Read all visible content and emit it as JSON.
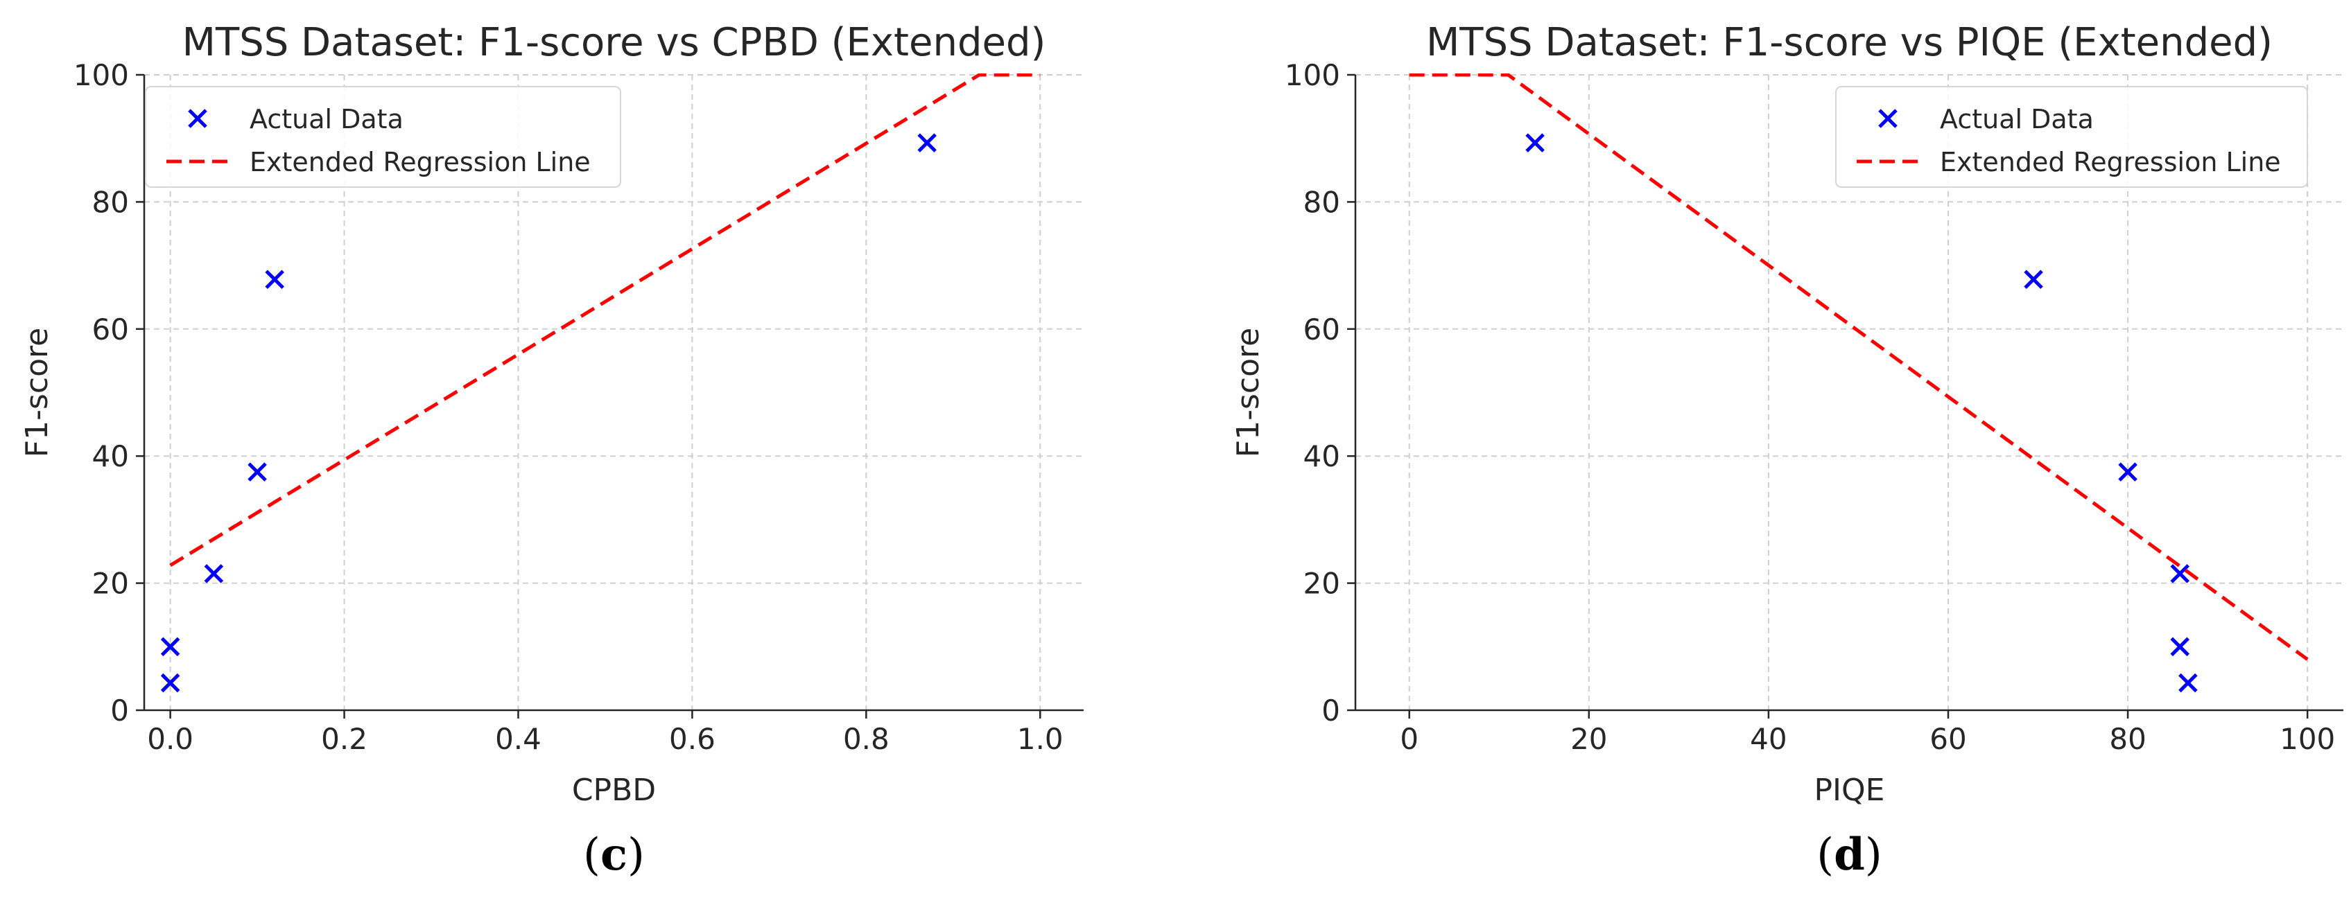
{
  "chart_data": [
    {
      "type": "scatter",
      "title": "MTSS Dataset: F1-score vs CPBD (Extended)",
      "xlabel": "CPBD",
      "ylabel": "F1-score",
      "xlim": [
        -0.03,
        1.05
      ],
      "ylim": [
        0,
        100
      ],
      "xticks": [
        0.0,
        0.2,
        0.4,
        0.6,
        0.8,
        1.0
      ],
      "xtick_labels": [
        "0.0",
        "0.2",
        "0.4",
        "0.6",
        "0.8",
        "1.0"
      ],
      "yticks": [
        0,
        20,
        40,
        60,
        80,
        100
      ],
      "ytick_labels": [
        "0",
        "20",
        "40",
        "60",
        "80",
        "100"
      ],
      "grid": true,
      "legend_position": "upper-left",
      "caption_letter": "c",
      "series": [
        {
          "name": "Actual Data",
          "kind": "scatter",
          "marker": "x",
          "color": "#0000ff",
          "x": [
            0.0,
            0.0,
            0.05,
            0.1,
            0.12,
            0.87
          ],
          "y": [
            10,
            4.3,
            21.5,
            37.5,
            67.8,
            89.3
          ]
        },
        {
          "name": "Extended Regression Line",
          "kind": "line",
          "style": "dashed",
          "color": "#ff0000",
          "x": [
            0.0,
            0.93,
            1.0
          ],
          "y": [
            22.8,
            100,
            100
          ]
        }
      ]
    },
    {
      "type": "scatter",
      "title": "MTSS Dataset: F1-score vs PIQE (Extended)",
      "xlabel": "PIQE",
      "ylabel": "F1-score",
      "xlim": [
        -6,
        104
      ],
      "ylim": [
        0,
        100
      ],
      "xticks": [
        0,
        20,
        40,
        60,
        80,
        100
      ],
      "xtick_labels": [
        "0",
        "20",
        "40",
        "60",
        "80",
        "100"
      ],
      "yticks": [
        0,
        20,
        40,
        60,
        80,
        100
      ],
      "ytick_labels": [
        "0",
        "20",
        "40",
        "60",
        "80",
        "100"
      ],
      "grid": true,
      "legend_position": "upper-right",
      "caption_letter": "d",
      "series": [
        {
          "name": "Actual Data",
          "kind": "scatter",
          "marker": "x",
          "color": "#0000ff",
          "x": [
            14,
            69.5,
            80,
            85.8,
            85.8,
            86.7
          ],
          "y": [
            89.3,
            67.8,
            37.5,
            21.5,
            10,
            4.3
          ]
        },
        {
          "name": "Extended Regression Line",
          "kind": "line",
          "style": "dashed",
          "color": "#ff0000",
          "x": [
            0,
            11,
            100
          ],
          "y": [
            100,
            100,
            8
          ]
        }
      ]
    }
  ]
}
